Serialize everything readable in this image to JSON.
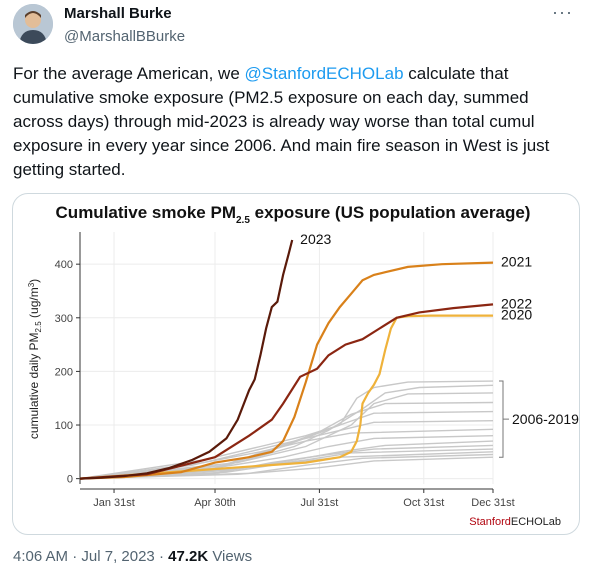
{
  "author": {
    "name": "Marshall Burke",
    "handle": "@MarshallBBurke",
    "avatar_icon": "user-photo"
  },
  "more_label": "···",
  "tweet": {
    "text_before": "For the average American, we ",
    "mention": "@StanfordECHOLab",
    "text_after": " calculate that cumulative smoke exposure (PM2.5 exposure on each day, summed across days) through mid-2023 is already way worse than total cumul exposure in every year since 2006. And main fire season in West is just getting started."
  },
  "meta": {
    "time": "4:06 AM",
    "date": "Jul 7, 2023",
    "separator": "·",
    "views_count": "47.2K",
    "views_label": "Views"
  },
  "chart_data": {
    "type": "line",
    "title": "Cumulative smoke PM",
    "title_sub": "2.5",
    "title_rest": " exposure (US population average)",
    "ylabel": "cumulative daily PM",
    "ylabel_sub": "2.5",
    "ylabel_rest": " (ug/m",
    "ylabel_sup": "3",
    "ylabel_end": ")",
    "xlabel": "",
    "xlim": [
      1,
      365
    ],
    "ylim": [
      -10,
      460
    ],
    "x_ticks": [
      {
        "value": 31,
        "label": "Jan 31st"
      },
      {
        "value": 120,
        "label": "Apr 30th"
      },
      {
        "value": 212,
        "label": "Jul 31st"
      },
      {
        "value": 304,
        "label": "Oct 31st"
      },
      {
        "value": 365,
        "label": "Dec 31st"
      }
    ],
    "y_ticks": [
      0,
      100,
      200,
      300,
      400
    ],
    "grid": true,
    "colors": {
      "2023": "#5a1a0a",
      "2022": "#8b2612",
      "2021": "#d9811a",
      "2020": "#efb23a",
      "background_years": "#c8c8c8"
    },
    "bracket_label": "2006-2019",
    "source_label_a": "Stanford",
    "source_label_b": "ECHOLab",
    "series": [
      {
        "name": "2023",
        "color": "#5a1a0a",
        "x": [
          1,
          20,
          40,
          60,
          80,
          100,
          115,
          130,
          140,
          150,
          155,
          160,
          165,
          170,
          175,
          180,
          185,
          188
        ],
        "y": [
          0,
          2,
          5,
          10,
          20,
          35,
          50,
          75,
          110,
          165,
          185,
          230,
          280,
          320,
          330,
          380,
          420,
          445
        ]
      },
      {
        "name": "2021",
        "color": "#d9811a",
        "x": [
          1,
          40,
          90,
          120,
          150,
          170,
          180,
          190,
          200,
          210,
          220,
          230,
          240,
          250,
          260,
          270,
          290,
          320,
          365
        ],
        "y": [
          0,
          3,
          12,
          30,
          40,
          50,
          70,
          115,
          180,
          250,
          290,
          320,
          345,
          370,
          380,
          385,
          395,
          400,
          403
        ]
      },
      {
        "name": "2022",
        "color": "#8b2612",
        "x": [
          1,
          60,
          120,
          150,
          170,
          180,
          195,
          210,
          220,
          235,
          250,
          265,
          280,
          300,
          330,
          365
        ],
        "y": [
          0,
          8,
          40,
          80,
          110,
          140,
          190,
          205,
          230,
          250,
          260,
          280,
          300,
          310,
          318,
          325
        ]
      },
      {
        "name": "2020",
        "color": "#efb23a",
        "x": [
          1,
          100,
          200,
          230,
          240,
          245,
          248,
          250,
          255,
          260,
          265,
          270,
          275,
          280,
          290,
          310,
          365
        ],
        "y": [
          0,
          15,
          30,
          40,
          50,
          70,
          100,
          140,
          160,
          175,
          195,
          240,
          280,
          300,
          303,
          304,
          304
        ]
      }
    ],
    "background_series": [
      {
        "x": [
          1,
          120,
          180,
          230,
          245,
          260,
          290,
          365
        ],
        "y": [
          0,
          20,
          60,
          100,
          150,
          170,
          180,
          182
        ]
      },
      {
        "x": [
          1,
          130,
          190,
          220,
          250,
          270,
          300,
          365
        ],
        "y": [
          0,
          25,
          60,
          90,
          130,
          160,
          170,
          174
        ]
      },
      {
        "x": [
          1,
          140,
          200,
          240,
          260,
          290,
          365
        ],
        "y": [
          0,
          30,
          60,
          100,
          140,
          158,
          160
        ]
      },
      {
        "x": [
          1,
          120,
          170,
          210,
          240,
          270,
          365
        ],
        "y": [
          0,
          20,
          55,
          85,
          120,
          140,
          142
        ]
      },
      {
        "x": [
          1,
          110,
          160,
          200,
          230,
          260,
          365
        ],
        "y": [
          0,
          35,
          60,
          80,
          100,
          122,
          125
        ]
      },
      {
        "x": [
          1,
          100,
          150,
          190,
          230,
          260,
          365
        ],
        "y": [
          0,
          25,
          50,
          70,
          90,
          105,
          108
        ]
      },
      {
        "x": [
          1,
          110,
          160,
          200,
          240,
          365
        ],
        "y": [
          0,
          30,
          50,
          70,
          85,
          92
        ]
      },
      {
        "x": [
          1,
          120,
          180,
          220,
          260,
          365
        ],
        "y": [
          0,
          20,
          40,
          60,
          75,
          80
        ]
      },
      {
        "x": [
          1,
          130,
          190,
          230,
          270,
          365
        ],
        "y": [
          0,
          15,
          35,
          50,
          62,
          70
        ]
      },
      {
        "x": [
          1,
          120,
          170,
          220,
          260,
          365
        ],
        "y": [
          0,
          10,
          30,
          45,
          55,
          62
        ]
      },
      {
        "x": [
          1,
          140,
          200,
          240,
          365
        ],
        "y": [
          0,
          18,
          35,
          48,
          55
        ]
      },
      {
        "x": [
          1,
          130,
          180,
          230,
          365
        ],
        "y": [
          0,
          12,
          28,
          40,
          50
        ]
      },
      {
        "x": [
          1,
          150,
          200,
          250,
          365
        ],
        "y": [
          0,
          10,
          25,
          38,
          45
        ]
      },
      {
        "x": [
          1,
          140,
          210,
          260,
          365
        ],
        "y": [
          0,
          8,
          20,
          33,
          40
        ]
      }
    ]
  }
}
